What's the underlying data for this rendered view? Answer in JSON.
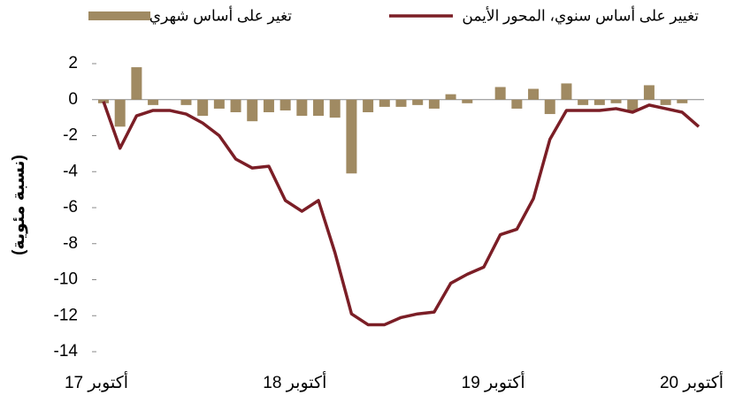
{
  "chart_data": {
    "type": "bar_line",
    "y_label": "(نسبة مئوية)",
    "categories": [
      "أكتوبر 17",
      null,
      null,
      null,
      null,
      null,
      null,
      null,
      null,
      null,
      null,
      null,
      "أكتوبر 18",
      null,
      null,
      null,
      null,
      null,
      null,
      null,
      null,
      null,
      null,
      null,
      "أكتوبر 19",
      null,
      null,
      null,
      null,
      null,
      null,
      null,
      null,
      null,
      null,
      null,
      "أكتوبر 20"
    ],
    "series": [
      {
        "name": "تغير على أساس شهري",
        "type": "bar",
        "color": "#a08a62",
        "values": [
          -0.2,
          -1.5,
          1.8,
          -0.3,
          0,
          -0.3,
          -0.9,
          -0.5,
          -0.7,
          -1.2,
          -0.7,
          -0.6,
          -0.9,
          -0.9,
          -1.0,
          -4.1,
          -0.7,
          -0.4,
          -0.4,
          -0.3,
          -0.5,
          0.3,
          -0.2,
          0,
          0.7,
          -0.5,
          0.6,
          -0.8,
          0.9,
          -0.3,
          -0.3,
          -0.2,
          -0.6,
          0.8,
          -0.3,
          -0.2,
          0
        ]
      },
      {
        "name": "تغيير على أساس سنوي، المحور الأيمن",
        "type": "line",
        "color": "#7b1e26",
        "values": [
          -0.1,
          -2.7,
          -0.9,
          -0.6,
          -0.6,
          -0.8,
          -1.3,
          -2.0,
          -3.3,
          -3.8,
          -3.7,
          -5.6,
          -6.2,
          -5.6,
          -8.5,
          -11.9,
          -12.5,
          -12.5,
          -12.1,
          -11.9,
          -11.8,
          -10.2,
          -9.7,
          -9.3,
          -7.5,
          -7.2,
          -5.5,
          -2.2,
          -0.6,
          -0.6,
          -0.6,
          -0.5,
          -0.7,
          -0.3,
          -0.5,
          -0.7,
          -1.5
        ]
      }
    ],
    "ylim": [
      -14,
      2
    ],
    "yticks": [
      -14,
      -12,
      -10,
      -8,
      -6,
      -4,
      -2,
      0,
      2
    ]
  }
}
